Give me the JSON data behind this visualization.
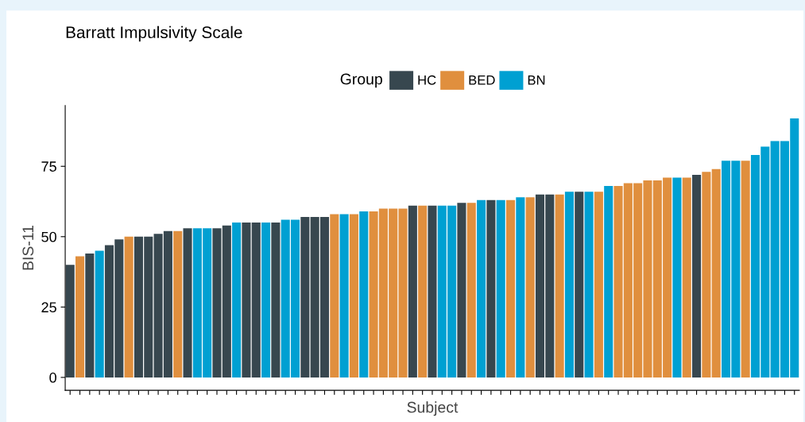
{
  "chart_data": {
    "type": "bar",
    "title": "Barratt Impulsivity Scale",
    "xlabel": "Subject",
    "ylabel": "BIS-11",
    "legend_title": "Group",
    "legend": "top",
    "categories": [
      null,
      null,
      null,
      null,
      null,
      null,
      null,
      null,
      null,
      null,
      null,
      null,
      null,
      null,
      null,
      null,
      null,
      null,
      null,
      null,
      null,
      null,
      null,
      null,
      null,
      null,
      null,
      null,
      null,
      null,
      null,
      null,
      null,
      null,
      null,
      null,
      null,
      null,
      null,
      null,
      null,
      null,
      null,
      null,
      null,
      null,
      null,
      null,
      null,
      null,
      null,
      null,
      null,
      null,
      null,
      null,
      null,
      null,
      null,
      null,
      null,
      null,
      null,
      null,
      null,
      null,
      null,
      null,
      null,
      null,
      null,
      null,
      null,
      null,
      null
    ],
    "series": [
      {
        "name": "HC",
        "color": "#37474f",
        "values": [
          40,
          null,
          44,
          null,
          47,
          49,
          null,
          50,
          50,
          51,
          52,
          null,
          53,
          null,
          null,
          53,
          54,
          null,
          55,
          55,
          null,
          55,
          null,
          null,
          57,
          57,
          57,
          null,
          null,
          null,
          null,
          null,
          null,
          null,
          null,
          61,
          null,
          61,
          null,
          null,
          62,
          null,
          null,
          63,
          null,
          null,
          null,
          null,
          65,
          65,
          null,
          null,
          66,
          null,
          null,
          null,
          null,
          null,
          null,
          null,
          null,
          null,
          null,
          null,
          72,
          null,
          null,
          null,
          null,
          null,
          null,
          null,
          null,
          null,
          null
        ]
      },
      {
        "name": "BED",
        "color": "#e08f3e",
        "values": [
          null,
          43,
          null,
          null,
          null,
          null,
          50,
          null,
          null,
          null,
          null,
          52,
          null,
          null,
          null,
          null,
          null,
          null,
          null,
          null,
          null,
          null,
          null,
          null,
          null,
          null,
          null,
          58,
          null,
          58,
          null,
          59,
          60,
          60,
          60,
          null,
          61,
          null,
          null,
          null,
          null,
          62,
          null,
          null,
          null,
          63,
          null,
          64,
          null,
          null,
          65,
          null,
          null,
          null,
          66,
          null,
          68,
          69,
          69,
          70,
          70,
          71,
          null,
          71,
          null,
          73,
          74,
          null,
          null,
          77,
          null,
          null,
          null,
          null,
          null
        ]
      },
      {
        "name": "BN",
        "color": "#00a0d2",
        "values": [
          null,
          null,
          null,
          45,
          null,
          null,
          null,
          null,
          null,
          null,
          null,
          null,
          null,
          53,
          53,
          null,
          null,
          55,
          null,
          null,
          55,
          null,
          56,
          56,
          null,
          null,
          null,
          null,
          58,
          null,
          59,
          null,
          null,
          null,
          null,
          null,
          null,
          null,
          61,
          61,
          null,
          null,
          63,
          null,
          63,
          null,
          64,
          null,
          null,
          null,
          null,
          66,
          null,
          66,
          null,
          68,
          null,
          null,
          null,
          null,
          null,
          null,
          71,
          null,
          null,
          null,
          null,
          77,
          77,
          null,
          79,
          82,
          84,
          84,
          92
        ]
      }
    ],
    "ylim": [
      -4.6,
      96.6
    ],
    "yticks": [
      0,
      25,
      50,
      75
    ],
    "tick_labels": "y",
    "grid": false
  }
}
